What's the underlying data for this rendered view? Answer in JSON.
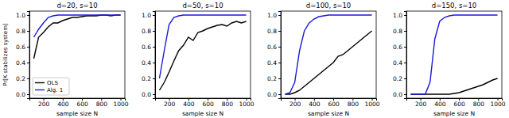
{
  "chart_data": [
    {
      "type": "line",
      "title": "d=20, s=10",
      "ylabel": "Pr[K stabilizes system]",
      "xlabel": "sample size N",
      "legend": "lower left",
      "x": [
        100,
        150,
        200,
        250,
        300,
        350,
        400,
        450,
        500,
        550,
        600,
        650,
        700,
        750,
        800,
        850,
        900,
        950,
        1000
      ],
      "xlim": [
        55,
        1045
      ],
      "xticks": [
        200,
        400,
        600,
        800,
        1000
      ],
      "ylim": [
        -0.05,
        1.05
      ],
      "yticks": [
        {
          "value": 0,
          "label": "0.0"
        },
        {
          "value": 0.2,
          "label": "0.2"
        },
        {
          "value": 0.4,
          "label": "0.4"
        },
        {
          "value": 0.6,
          "label": "0.6"
        },
        {
          "value": 0.8,
          "label": "0.8"
        },
        {
          "value": 1,
          "label": "1.0"
        }
      ],
      "series": [
        {
          "name": "OLS",
          "color": "#000000",
          "values": [
            0.45,
            0.72,
            0.78,
            0.85,
            0.9,
            0.9,
            0.93,
            0.95,
            0.97,
            0.97,
            0.98,
            0.99,
            0.99,
            0.99,
            1.0,
            1.0,
            0.99,
            1.0,
            1.0
          ]
        },
        {
          "name": "Alg. 1",
          "color": "#1a1ad6",
          "values": [
            0.72,
            0.82,
            0.9,
            0.97,
            0.99,
            1.0,
            1.0,
            1.0,
            1.0,
            1.0,
            1.0,
            1.0,
            1.0,
            1.0,
            1.0,
            1.0,
            1.0,
            1.0,
            1.0
          ]
        }
      ]
    },
    {
      "type": "line",
      "title": "d=50, s=10",
      "xlabel": "sample size N",
      "x": [
        100,
        150,
        200,
        250,
        300,
        350,
        400,
        450,
        500,
        550,
        600,
        650,
        700,
        750,
        800,
        850,
        900,
        950,
        1000
      ],
      "xlim": [
        55,
        1045
      ],
      "xticks": [
        200,
        400,
        600,
        800,
        1000
      ],
      "ylim": [
        -0.05,
        1.05
      ],
      "yticks": [
        {
          "value": 0,
          "label": "0.0"
        },
        {
          "value": 0.2,
          "label": "0.2"
        },
        {
          "value": 0.4,
          "label": "0.4"
        },
        {
          "value": 0.6,
          "label": "0.6"
        },
        {
          "value": 0.8,
          "label": "0.8"
        },
        {
          "value": 1,
          "label": "1.0"
        }
      ],
      "series": [
        {
          "color": "#000000",
          "values": [
            0.05,
            0.15,
            0.28,
            0.42,
            0.55,
            0.62,
            0.72,
            0.68,
            0.78,
            0.8,
            0.83,
            0.85,
            0.87,
            0.88,
            0.86,
            0.9,
            0.92,
            0.9,
            0.92
          ]
        },
        {
          "color": "#1a1ad6",
          "values": [
            0.2,
            0.55,
            0.88,
            0.97,
            0.99,
            1.0,
            1.0,
            1.0,
            1.0,
            1.0,
            1.0,
            1.0,
            1.0,
            1.0,
            1.0,
            1.0,
            1.0,
            1.0,
            1.0
          ]
        }
      ]
    },
    {
      "type": "line",
      "title": "d=100, s=10",
      "xlabel": "sample size N",
      "x": [
        100,
        150,
        200,
        250,
        300,
        350,
        400,
        450,
        500,
        550,
        600,
        650,
        700,
        750,
        800,
        850,
        900,
        950,
        1000
      ],
      "xlim": [
        55,
        1045
      ],
      "xticks": [
        200,
        400,
        600,
        800,
        1000
      ],
      "ylim": [
        -0.05,
        1.05
      ],
      "yticks": [
        {
          "value": 0,
          "label": "0.0"
        },
        {
          "value": 0.2,
          "label": "0.2"
        },
        {
          "value": 0.4,
          "label": "0.4"
        },
        {
          "value": 0.6,
          "label": "0.6"
        },
        {
          "value": 0.8,
          "label": "0.8"
        },
        {
          "value": 1,
          "label": "1.0"
        }
      ],
      "series": [
        {
          "color": "#000000",
          "values": [
            0,
            0,
            0.02,
            0.05,
            0.1,
            0.15,
            0.2,
            0.25,
            0.3,
            0.35,
            0.4,
            0.48,
            0.5,
            0.55,
            0.6,
            0.65,
            0.7,
            0.75,
            0.8
          ]
        },
        {
          "color": "#1a1ad6",
          "values": [
            0,
            0.02,
            0.15,
            0.55,
            0.8,
            0.9,
            0.95,
            0.98,
            0.99,
            1.0,
            1.0,
            1.0,
            1.0,
            1.0,
            1.0,
            1.0,
            1.0,
            1.0,
            1.0
          ]
        }
      ]
    },
    {
      "type": "line",
      "title": "d=150, s=10",
      "xlabel": "sample size N",
      "x": [
        100,
        150,
        200,
        250,
        300,
        350,
        400,
        450,
        500,
        550,
        600,
        650,
        700,
        750,
        800,
        850,
        900,
        950,
        1000
      ],
      "xlim": [
        55,
        1045
      ],
      "xticks": [
        200,
        400,
        600,
        800,
        1000
      ],
      "ylim": [
        -0.05,
        1.05
      ],
      "yticks": [
        {
          "value": 0,
          "label": "0.0"
        },
        {
          "value": 0.2,
          "label": "0.2"
        },
        {
          "value": 0.4,
          "label": "0.4"
        },
        {
          "value": 0.6,
          "label": "0.6"
        },
        {
          "value": 0.8,
          "label": "0.8"
        },
        {
          "value": 1,
          "label": "1.0"
        }
      ],
      "series": [
        {
          "color": "#000000",
          "values": [
            0,
            0,
            0,
            0,
            0,
            0,
            0,
            0,
            0,
            0.01,
            0.02,
            0.04,
            0.06,
            0.08,
            0.1,
            0.12,
            0.15,
            0.18,
            0.2
          ]
        },
        {
          "color": "#1a1ad6",
          "values": [
            0,
            0,
            0,
            0,
            0.15,
            0.7,
            0.92,
            0.97,
            0.99,
            1.0,
            1.0,
            1.0,
            1.0,
            1.0,
            1.0,
            1.0,
            1.0,
            1.0,
            1.0
          ]
        }
      ]
    }
  ]
}
